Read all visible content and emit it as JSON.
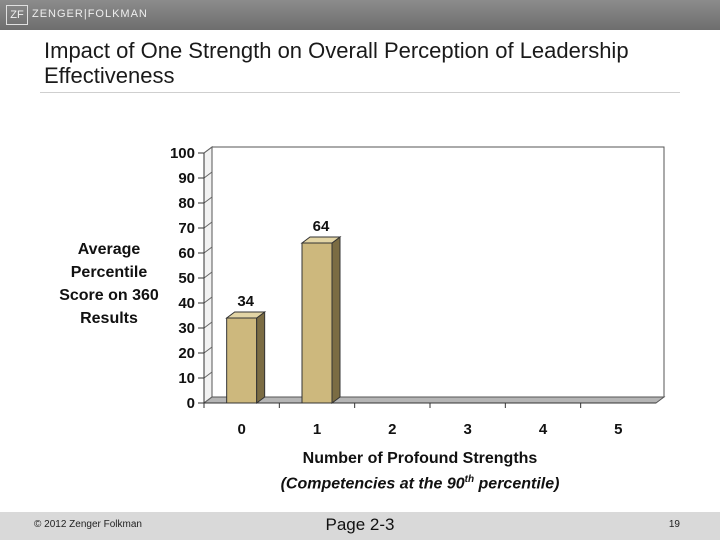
{
  "header": {
    "logo_text": "ZF",
    "brand_text": "ZENGER|FOLKMAN"
  },
  "slide": {
    "title": "Impact of One Strength on Overall Perception of Leadership Effectiveness"
  },
  "footer": {
    "copyright": "© 2012 Zenger Folkman",
    "page_ref": "Page 2-3",
    "slide_number": "19"
  },
  "colors": {
    "bar_front": "#cdb87d",
    "bar_side": "#7b6c43",
    "bar_top": "#e3d5a5",
    "wall": "#ffffff",
    "floor": "#b5b5b5"
  },
  "chart_data": {
    "type": "bar",
    "title": "",
    "ylabel": "Average Percentile Score on 360 Results",
    "xlabel": "Number of Profound Strengths",
    "xlabel_sub_pre": "(Competencies at the 90",
    "xlabel_sub_sup": "th",
    "xlabel_sub_post": " percentile)",
    "categories": [
      "0",
      "1",
      "2",
      "3",
      "4",
      "5"
    ],
    "values": [
      34,
      64,
      null,
      null,
      null,
      null
    ],
    "data_labels": [
      "34",
      "64",
      "",
      "",
      "",
      ""
    ],
    "ylim": [
      0,
      100
    ],
    "yticks": [
      0,
      10,
      20,
      30,
      40,
      50,
      60,
      70,
      80,
      90,
      100
    ],
    "grid": false,
    "legend": "none",
    "style": "3d"
  }
}
